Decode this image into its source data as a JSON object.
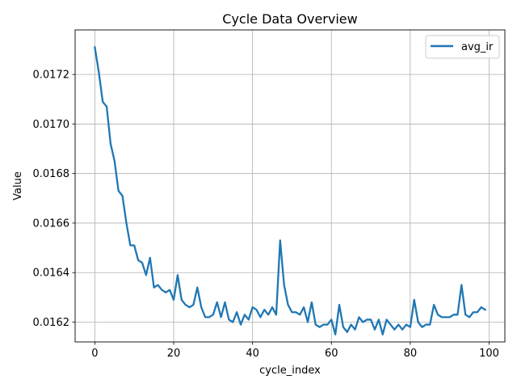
{
  "chart_data": {
    "type": "line",
    "title": "Cycle Data Overview",
    "xlabel": "cycle_index",
    "ylabel": "Value",
    "xlim": [
      -5,
      104
    ],
    "ylim": [
      0.01612,
      0.01738
    ],
    "x_ticks": [
      0,
      20,
      40,
      60,
      80,
      100
    ],
    "y_ticks": [
      0.0162,
      0.0164,
      0.0166,
      0.0168,
      0.017,
      0.0172
    ],
    "x_tick_labels": [
      "0",
      "20",
      "40",
      "60",
      "80",
      "100"
    ],
    "y_tick_labels": [
      "0.0162",
      "0.0164",
      "0.0166",
      "0.0168",
      "0.0170",
      "0.0172"
    ],
    "grid": true,
    "legend_position": "top-right",
    "series": [
      {
        "name": "avg_ir",
        "color": "#1f77b4",
        "x": [
          0,
          1,
          2,
          3,
          4,
          5,
          6,
          7,
          8,
          9,
          10,
          11,
          12,
          13,
          14,
          15,
          16,
          17,
          18,
          19,
          20,
          21,
          22,
          23,
          24,
          25,
          26,
          27,
          28,
          29,
          30,
          31,
          32,
          33,
          34,
          35,
          36,
          37,
          38,
          39,
          40,
          41,
          42,
          43,
          44,
          45,
          46,
          47,
          48,
          49,
          50,
          51,
          52,
          53,
          54,
          55,
          56,
          57,
          58,
          59,
          60,
          61,
          62,
          63,
          64,
          65,
          66,
          67,
          68,
          69,
          70,
          71,
          72,
          73,
          74,
          75,
          76,
          77,
          78,
          79,
          80,
          81,
          82,
          83,
          84,
          85,
          86,
          87,
          88,
          89,
          90,
          91,
          92,
          93,
          94,
          95,
          96,
          97,
          98,
          99
        ],
        "values": [
          0.01731,
          0.01721,
          0.01709,
          0.01707,
          0.01692,
          0.01685,
          0.01673,
          0.01671,
          0.0166,
          0.01651,
          0.01651,
          0.01645,
          0.01644,
          0.01639,
          0.01646,
          0.01634,
          0.01635,
          0.01633,
          0.01632,
          0.01633,
          0.01629,
          0.01639,
          0.01629,
          0.01627,
          0.01626,
          0.01627,
          0.01634,
          0.01626,
          0.01622,
          0.01622,
          0.01623,
          0.01628,
          0.01622,
          0.01628,
          0.01621,
          0.0162,
          0.01624,
          0.01619,
          0.01623,
          0.01621,
          0.01626,
          0.01625,
          0.01622,
          0.01625,
          0.01623,
          0.01626,
          0.01623,
          0.01653,
          0.01635,
          0.01627,
          0.01624,
          0.01624,
          0.01623,
          0.01626,
          0.0162,
          0.01628,
          0.01619,
          0.01618,
          0.01619,
          0.01619,
          0.01621,
          0.01615,
          0.01627,
          0.01618,
          0.01616,
          0.01619,
          0.01617,
          0.01622,
          0.0162,
          0.01621,
          0.01621,
          0.01617,
          0.01621,
          0.01615,
          0.01621,
          0.01619,
          0.01617,
          0.01619,
          0.01617,
          0.01619,
          0.01618,
          0.01629,
          0.0162,
          0.01618,
          0.01619,
          0.01619,
          0.01627,
          0.01623,
          0.01622,
          0.01622,
          0.01622,
          0.01623,
          0.01623,
          0.01635,
          0.01623,
          0.01622,
          0.01624,
          0.01624,
          0.01626,
          0.01625
        ]
      }
    ]
  }
}
